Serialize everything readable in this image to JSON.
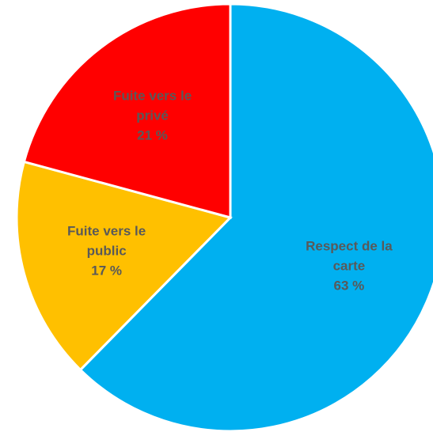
{
  "chart_data": {
    "type": "pie",
    "categories": [
      "Respect de la carte",
      "Fuite vers le public",
      "Fuite vers le privé"
    ],
    "values": [
      63,
      17,
      21
    ],
    "value_labels": [
      "63 %",
      "17 %",
      "21 %"
    ],
    "colors": [
      "#00b0f0",
      "#ffc000",
      "#ff0000"
    ],
    "label_color": "#595959"
  }
}
